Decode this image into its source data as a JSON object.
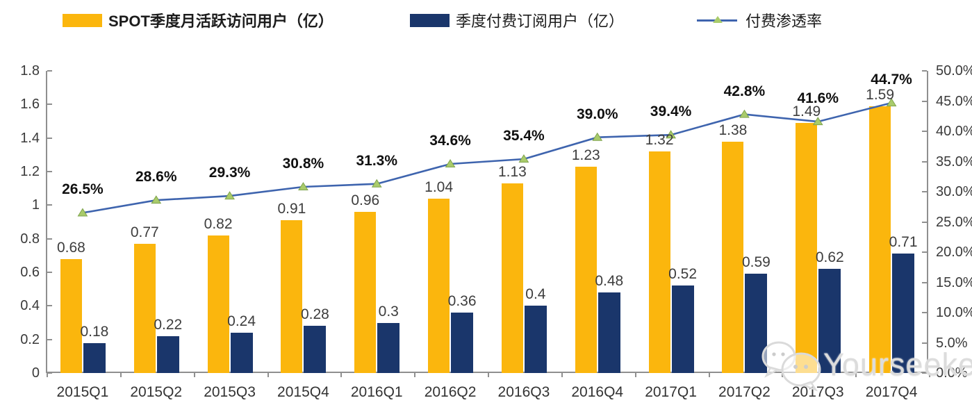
{
  "legend": {
    "items": [
      {
        "label": "SPOT季度月活跃访问用户（亿）"
      },
      {
        "label": "季度付费订阅用户（亿）"
      },
      {
        "label": "付费渗透率"
      }
    ]
  },
  "chart_data": {
    "type": "combo-bar-line",
    "categories": [
      "2015Q1",
      "2015Q2",
      "2015Q3",
      "2015Q4",
      "2016Q1",
      "2016Q2",
      "2016Q3",
      "2016Q4",
      "2017Q1",
      "2017Q2",
      "2017Q3",
      "2017Q4"
    ],
    "series": [
      {
        "name": "SPOT季度月活跃访问用户（亿）",
        "type": "bar",
        "axis": "left",
        "color": "#FBB60D",
        "values": [
          0.68,
          0.77,
          0.82,
          0.91,
          0.96,
          1.04,
          1.13,
          1.23,
          1.32,
          1.38,
          1.49,
          1.59
        ],
        "labels": [
          "0.68",
          "0.77",
          "0.82",
          "0.91",
          "0.96",
          "1.04",
          "1.13",
          "1.23",
          "1.32",
          "1.38",
          "1.49",
          "1.59"
        ]
      },
      {
        "name": "季度付费订阅用户（亿）",
        "type": "bar",
        "axis": "left",
        "color": "#1A366B",
        "values": [
          0.18,
          0.22,
          0.24,
          0.28,
          0.3,
          0.36,
          0.4,
          0.48,
          0.52,
          0.59,
          0.62,
          0.71
        ],
        "labels": [
          "0.18",
          "0.22",
          "0.24",
          "0.28",
          "0.3",
          "0.36",
          "0.4",
          "0.48",
          "0.52",
          "0.59",
          "0.62",
          "0.71"
        ]
      },
      {
        "name": "付费渗透率",
        "type": "line",
        "axis": "right",
        "color": "#3E64AE",
        "marker_color": "#A9CB6B",
        "marker_edge": "#7fa44d",
        "values": [
          26.5,
          28.6,
          29.3,
          30.8,
          31.3,
          34.6,
          35.4,
          39.0,
          39.4,
          42.8,
          41.6,
          44.7
        ],
        "labels": [
          "26.5%",
          "28.6%",
          "29.3%",
          "30.8%",
          "31.3%",
          "34.6%",
          "35.4%",
          "39.0%",
          "39.4%",
          "42.8%",
          "41.6%",
          "44.7%"
        ]
      }
    ],
    "left_axis": {
      "min": 0,
      "max": 1.8,
      "ticks": [
        "1.8",
        "1.6",
        "1.4",
        "1.2",
        "1",
        "0.8",
        "0.6",
        "0.4",
        "0.2",
        "0"
      ]
    },
    "right_axis": {
      "min": 0,
      "max": 50,
      "ticks": [
        "50.0%",
        "45.0%",
        "40.0%",
        "35.0%",
        "30.0%",
        "25.0%",
        "20.0%",
        "15.0%",
        "10.0%",
        "5.0%",
        "0.0%"
      ]
    },
    "grid": false,
    "legend_position": "top"
  },
  "watermark": {
    "text": "Yourseeker",
    "icon": "wechat-icon"
  }
}
